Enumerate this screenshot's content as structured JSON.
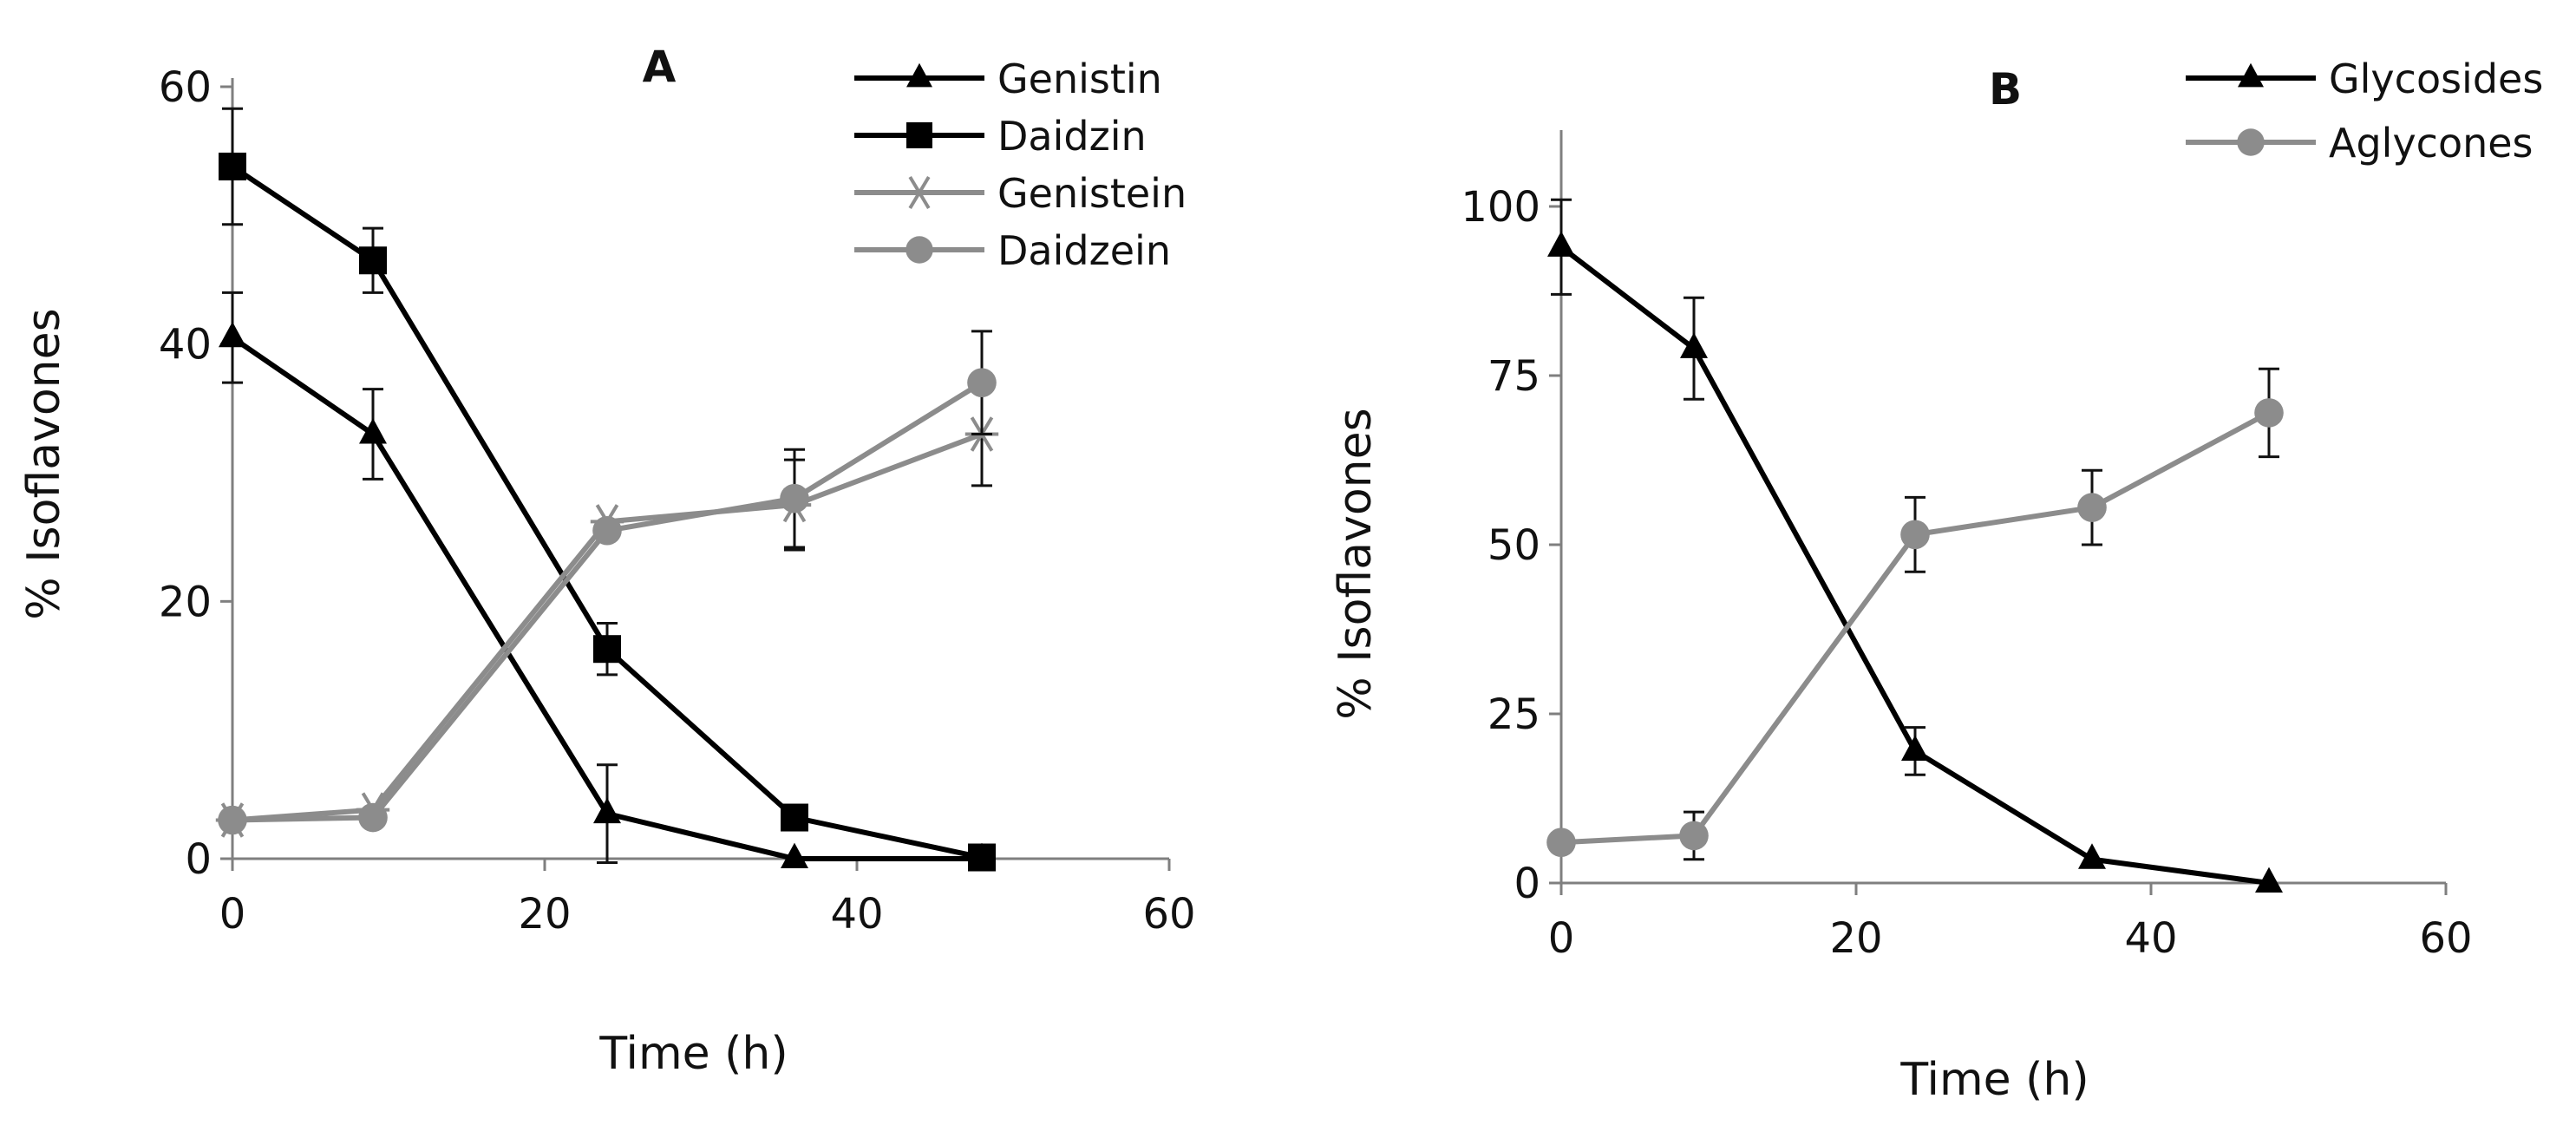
{
  "colors": {
    "black_series": "#000000",
    "gray_series": "#8c8c8c",
    "axis": "#7f7f7f",
    "text": "#111111"
  },
  "chart_data": [
    {
      "type": "line",
      "panel_label": "A",
      "xlabel": "Time (h)",
      "ylabel": "% Isoflavones",
      "xlim": [
        0,
        60
      ],
      "ylim": [
        0,
        60
      ],
      "xticks": [
        0,
        20,
        40,
        60
      ],
      "yticks": [
        0,
        20,
        40,
        60
      ],
      "grid": false,
      "legend_position": "top-right",
      "series": [
        {
          "name": "Genistin",
          "marker": "triangle",
          "color": "#000000",
          "x": [
            0,
            9,
            24,
            36,
            48
          ],
          "y": [
            40.5,
            33,
            3.5,
            0,
            0
          ],
          "err": [
            3.5,
            3.5,
            3.8,
            0,
            0
          ]
        },
        {
          "name": "Daidzin",
          "marker": "square",
          "color": "#000000",
          "x": [
            0,
            9,
            24,
            36,
            48
          ],
          "y": [
            53.8,
            46.5,
            16.3,
            3.2,
            0.1
          ],
          "err": [
            4.5,
            2.5,
            2,
            0,
            0
          ]
        },
        {
          "name": "Genistein",
          "marker": "asterisk",
          "color": "#8c8c8c",
          "x": [
            0,
            9,
            24,
            36,
            48
          ],
          "y": [
            3,
            3.8,
            26.2,
            27.5,
            33
          ],
          "err": [
            0,
            0,
            0,
            3.5,
            4
          ]
        },
        {
          "name": "Daidzein",
          "marker": "circle",
          "color": "#8c8c8c",
          "x": [
            0,
            9,
            24,
            36,
            48
          ],
          "y": [
            3,
            3.2,
            25.5,
            28,
            37
          ],
          "err": [
            0,
            0,
            0,
            3.8,
            4
          ]
        }
      ]
    },
    {
      "type": "line",
      "panel_label": "B",
      "xlabel": "Time (h)",
      "ylabel": "% Isoflavones",
      "xlim": [
        0,
        60
      ],
      "ylim": [
        0,
        110
      ],
      "xticks": [
        0,
        20,
        40,
        60
      ],
      "yticks": [
        0,
        25,
        50,
        75,
        100
      ],
      "grid": false,
      "legend_position": "top-right",
      "series": [
        {
          "name": "Glycosides",
          "marker": "triangle",
          "color": "#000000",
          "x": [
            0,
            9,
            24,
            36,
            48
          ],
          "y": [
            94,
            79,
            19.5,
            3.5,
            0
          ],
          "err": [
            7,
            7.5,
            3.5,
            0,
            0
          ]
        },
        {
          "name": "Aglycones",
          "marker": "circle",
          "color": "#8c8c8c",
          "x": [
            0,
            9,
            24,
            36,
            48
          ],
          "y": [
            6,
            7,
            51.5,
            55.5,
            69.5
          ],
          "err": [
            0,
            3.5,
            5.5,
            5.5,
            6.5
          ]
        }
      ]
    }
  ]
}
